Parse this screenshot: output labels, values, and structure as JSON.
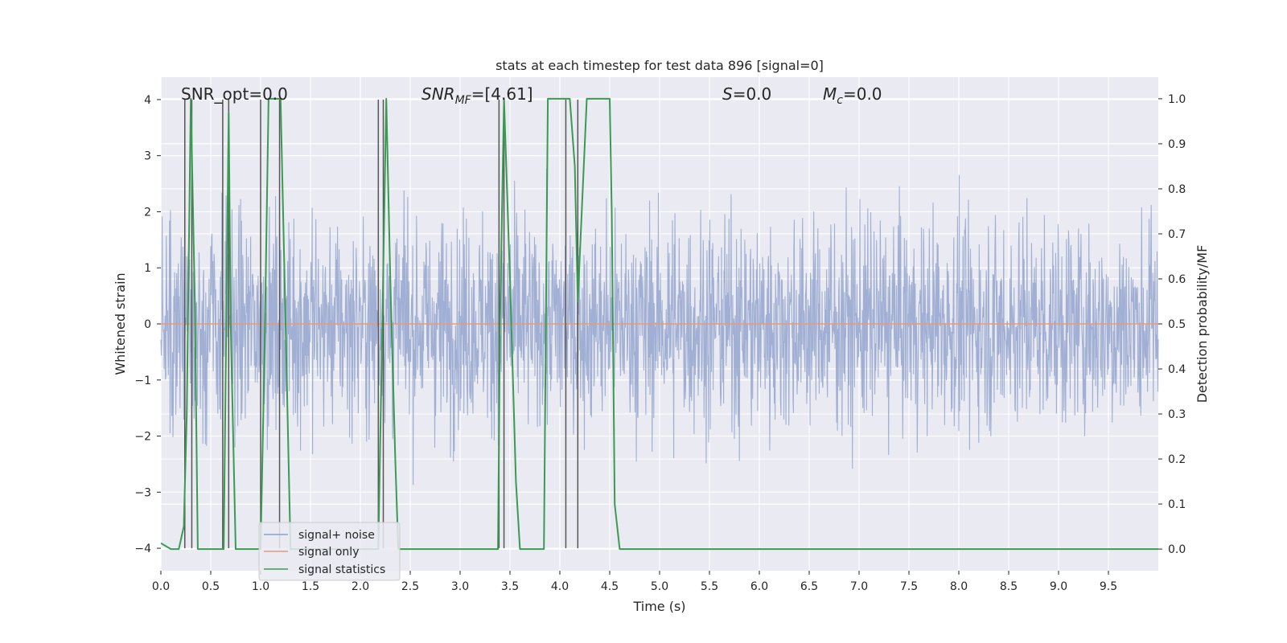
{
  "chart_data": {
    "type": "line",
    "title": "stats at each timestep for test data 896 [signal=0]",
    "xlabel": "Time (s)",
    "ylabel": "Whitened strain",
    "ylabel_right": "Detection probability/MF",
    "xlim": [
      0,
      10
    ],
    "ylim": [
      -4.4,
      4.4
    ],
    "ylim_right": [
      -0.048,
      1.048
    ],
    "x_ticks": [
      "0.0",
      "0.5",
      "1.0",
      "1.5",
      "2.0",
      "2.5",
      "3.0",
      "3.5",
      "4.0",
      "4.5",
      "5.0",
      "5.5",
      "6.0",
      "6.5",
      "7.0",
      "7.5",
      "8.0",
      "8.5",
      "9.0",
      "9.5"
    ],
    "y_ticks": [
      "−4",
      "−3",
      "−2",
      "−1",
      "0",
      "1",
      "2",
      "3",
      "4"
    ],
    "y_ticks_right": [
      "0.0",
      "0.1",
      "0.2",
      "0.3",
      "0.4",
      "0.5",
      "0.6",
      "0.7",
      "0.8",
      "0.9",
      "1.0"
    ],
    "grid": true,
    "legend_position": "lower-left",
    "annotations": {
      "snr_opt": "SNR_opt=0.0",
      "snr_mf": "SNR",
      "snr_mf_sub": "MF",
      "snr_mf_value": "=[4.61]",
      "s_label": "S",
      "s_value": "=0.0",
      "mc_label": "M",
      "mc_sub": "c",
      "mc_value": "=0.0"
    },
    "series": [
      {
        "name": "signal+ noise",
        "color": "#8da0cb",
        "kind": "dense noise, approx. range −4 to 4, mostly within ±2.5"
      },
      {
        "name": "signal only",
        "color": "#e49a7a",
        "values_constant": 0
      },
      {
        "name": "signal statistics",
        "color": "#3b9a52",
        "x": [
          0.0,
          0.1,
          0.18,
          0.23,
          0.26,
          0.3,
          0.34,
          0.37,
          0.4,
          0.5,
          0.6,
          0.63,
          0.68,
          0.7,
          0.75,
          0.8,
          0.9,
          1.0,
          1.04,
          1.08,
          1.12,
          1.17,
          1.2,
          1.24,
          1.28,
          1.3,
          1.35,
          1.5,
          2.0,
          2.1,
          2.18,
          2.22,
          2.26,
          2.3,
          2.35,
          2.38,
          2.5,
          3.0,
          3.38,
          3.4,
          3.44,
          3.5,
          3.56,
          3.6,
          3.8,
          3.84,
          3.88,
          4.07,
          4.1,
          4.15,
          4.18,
          4.23,
          4.27,
          4.5,
          4.52,
          4.55,
          4.6,
          4.7,
          5.0,
          10.0
        ],
        "y": [
          0.013,
          0.0,
          0.0,
          0.05,
          0.3,
          1.0,
          0.55,
          0.0,
          0.0,
          0.0,
          0.0,
          0.0,
          0.97,
          0.5,
          0.0,
          0.0,
          0.0,
          0.0,
          0.45,
          1.0,
          1.0,
          1.0,
          1.0,
          0.6,
          0.2,
          0.0,
          0.0,
          0.0,
          0.0,
          0.0,
          0.0,
          0.5,
          1.0,
          0.6,
          0.2,
          0.0,
          0.0,
          0.0,
          0.0,
          0.5,
          1.0,
          0.6,
          0.15,
          0.0,
          0.0,
          0.0,
          1.0,
          1.0,
          1.0,
          0.85,
          0.55,
          0.8,
          1.0,
          1.0,
          0.75,
          0.1,
          0.0,
          0.0,
          0.0,
          0.0
        ]
      }
    ],
    "vertical_markers_x": [
      0.24,
      0.31,
      0.62,
      0.68,
      1.0,
      1.19,
      2.18,
      2.23,
      3.39,
      3.44,
      4.06,
      4.18
    ]
  }
}
